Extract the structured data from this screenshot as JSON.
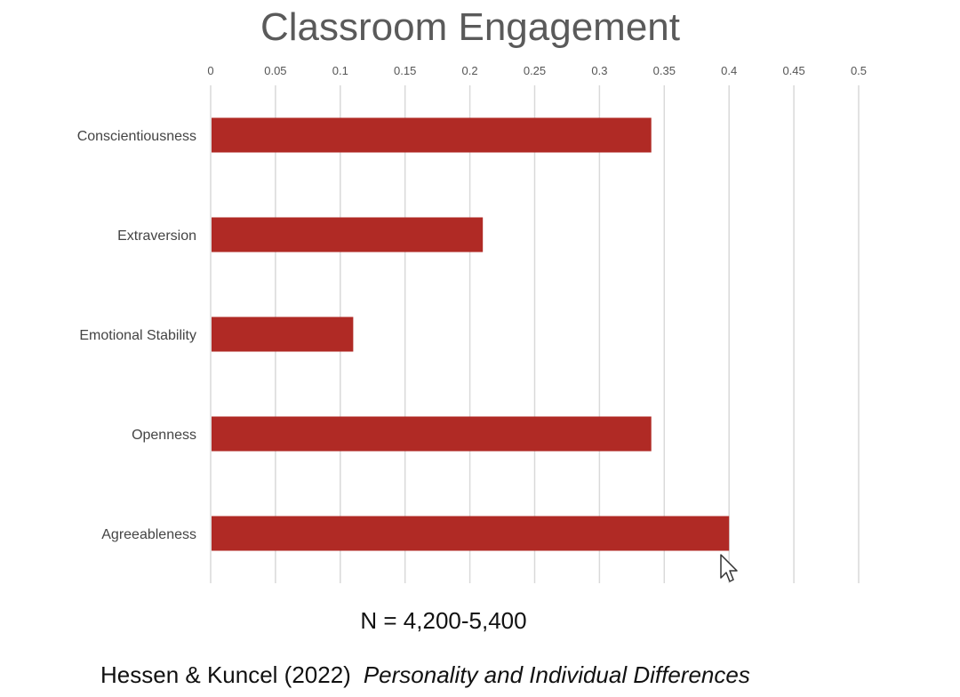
{
  "chart_data": {
    "type": "bar",
    "orientation": "horizontal",
    "title": "Classroom Engagement",
    "categories": [
      "Conscientiousness",
      "Extraversion",
      "Emotional Stability",
      "Openness",
      "Agreeableness"
    ],
    "values": [
      0.34,
      0.21,
      0.11,
      0.34,
      0.4
    ],
    "xticks": [
      "0",
      "0.05",
      "0.1",
      "0.15",
      "0.2",
      "0.25",
      "0.3",
      "0.35",
      "0.4",
      "0.45",
      "0.5"
    ],
    "xlim": [
      0,
      0.5
    ],
    "x_axis_position": "top",
    "grid": true,
    "bar_color": "#b02a25",
    "grid_color": "#d9d9d9"
  },
  "note": "N = 4,200-5,400",
  "citation": {
    "authors": "Hessen & Kuncel (2022)",
    "journal": "Personality and Individual Differences"
  },
  "cursor_icon": "mouse-pointer-icon"
}
